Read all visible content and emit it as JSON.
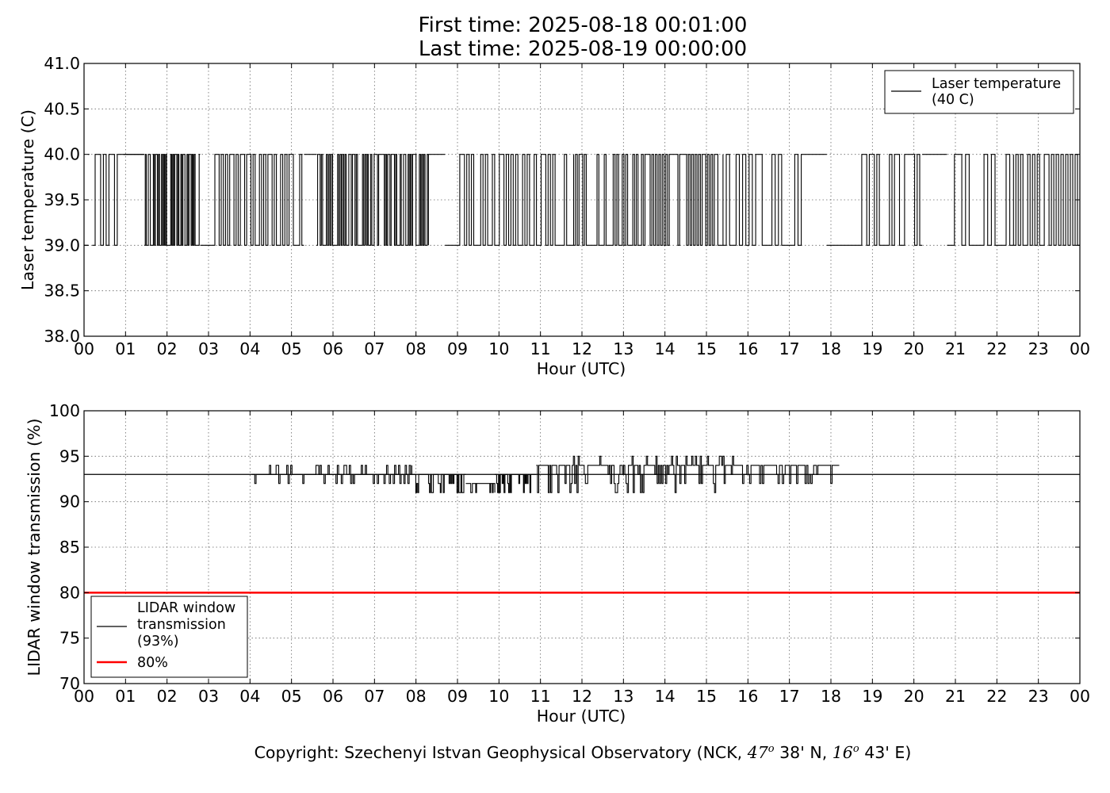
{
  "header": {
    "first_time": "First time: 2025-08-18 00:01:00",
    "last_time": "Last time: 2025-08-19 00:00:00"
  },
  "footer": {
    "copyright_prefix": "Copyright: Szechenyi Istvan Geophysical Observatory (NCK, ",
    "lat_deg": "47",
    "lat_min": " 38' N, ",
    "lon_deg": "16",
    "lon_min": " 43' E)",
    "degree_symbol": "o"
  },
  "chart_data": [
    {
      "type": "line",
      "xlabel": "Hour (UTC)",
      "ylabel": "Laser temperature (C)",
      "xlim": [
        0,
        24
      ],
      "ylim": [
        38.0,
        41.0
      ],
      "xticks": [
        "00",
        "01",
        "02",
        "03",
        "04",
        "05",
        "06",
        "07",
        "08",
        "09",
        "10",
        "11",
        "12",
        "13",
        "14",
        "15",
        "16",
        "17",
        "18",
        "19",
        "20",
        "21",
        "22",
        "23",
        "00"
      ],
      "yticks": [
        "38.0",
        "38.5",
        "39.0",
        "39.5",
        "40.0",
        "40.5",
        "41.0"
      ],
      "grid": true,
      "legend_position": "top-right",
      "series": [
        {
          "name": "Laser temperature\n(40 C)",
          "color": "#000000",
          "baseline": 40.0,
          "segments": [
            {
              "x": [
                0.0,
                0.1
              ],
              "y": [
                39,
                39
              ]
            },
            {
              "x": [
                0.1,
                0.13
              ],
              "y": [
                40,
                40
              ]
            },
            {
              "x": [
                0.2,
                0.8
              ],
              "mode": "dense",
              "density": 9,
              "levels": [
                39,
                40
              ]
            },
            {
              "x": [
                0.8,
                0.95
              ],
              "y": [
                40,
                40
              ]
            },
            {
              "x": [
                0.95,
                1.45
              ],
              "y": [
                40,
                40
              ]
            },
            {
              "x": [
                1.45,
                2.8
              ],
              "mode": "dense",
              "density": 55,
              "levels": [
                39,
                40
              ]
            },
            {
              "x": [
                2.8,
                3.0
              ],
              "y": [
                39,
                39
              ]
            },
            {
              "x": [
                3.0,
                5.3
              ],
              "mode": "dense",
              "density": 45,
              "levels": [
                39,
                40
              ]
            },
            {
              "x": [
                5.3,
                5.6
              ],
              "y": [
                40,
                40
              ]
            },
            {
              "x": [
                5.6,
                6.8
              ],
              "mode": "dense",
              "density": 40,
              "levels": [
                39,
                40
              ]
            },
            {
              "x": [
                6.8,
                8.3
              ],
              "mode": "dense",
              "density": 55,
              "levels": [
                39,
                40
              ]
            },
            {
              "x": [
                8.3,
                8.7
              ],
              "y": [
                40,
                40
              ]
            },
            {
              "x": [
                8.7,
                9.0
              ],
              "y": [
                39,
                39
              ]
            },
            {
              "x": [
                9.0,
                11.8
              ],
              "mode": "dense",
              "density": 50,
              "levels": [
                39,
                40
              ]
            },
            {
              "x": [
                11.8,
                13.1
              ],
              "mode": "dense",
              "density": 30,
              "levels": [
                39,
                40
              ]
            },
            {
              "x": [
                13.1,
                15.4
              ],
              "mode": "dense",
              "density": 55,
              "levels": [
                39,
                40
              ]
            },
            {
              "x": [
                15.4,
                17.6
              ],
              "mode": "dense",
              "density": 28,
              "levels": [
                39,
                40
              ]
            },
            {
              "x": [
                17.6,
                17.9
              ],
              "y": [
                40,
                40
              ]
            },
            {
              "x": [
                17.9,
                18.5
              ],
              "y": [
                39,
                39
              ]
            },
            {
              "x": [
                18.5,
                20.2
              ],
              "mode": "dense",
              "density": 28,
              "levels": [
                39,
                40
              ]
            },
            {
              "x": [
                20.2,
                20.8
              ],
              "y": [
                40,
                40
              ]
            },
            {
              "x": [
                20.8,
                22.4
              ],
              "mode": "dense",
              "density": 18,
              "levels": [
                39,
                40
              ]
            },
            {
              "x": [
                22.4,
                24.0
              ],
              "mode": "dense",
              "density": 28,
              "levels": [
                39,
                40
              ]
            }
          ]
        }
      ]
    },
    {
      "type": "line",
      "xlabel": "Hour (UTC)",
      "ylabel": "LIDAR window transmission (%)",
      "xlim": [
        0,
        24
      ],
      "ylim": [
        70,
        100
      ],
      "xticks": [
        "00",
        "01",
        "02",
        "03",
        "04",
        "05",
        "06",
        "07",
        "08",
        "09",
        "10",
        "11",
        "12",
        "13",
        "14",
        "15",
        "16",
        "17",
        "18",
        "19",
        "20",
        "21",
        "22",
        "23",
        "00"
      ],
      "yticks": [
        "70",
        "75",
        "80",
        "85",
        "90",
        "95",
        "100"
      ],
      "grid": true,
      "legend_position": "bottom-left",
      "series": [
        {
          "name": "LIDAR window\ntransmission\n(93%)",
          "color": "#000000",
          "reference_line": 93,
          "segments": [
            {
              "x": [
                4.05,
                7.9
              ],
              "base": 93,
              "levels": [
                93,
                94,
                92
              ],
              "density": 120
            },
            {
              "x": [
                7.9,
                9.2
              ],
              "base": 93,
              "levels": [
                92,
                93,
                91
              ],
              "density": 55
            },
            {
              "x": [
                9.2,
                9.9
              ],
              "base": 92,
              "levels": [
                91,
                92
              ],
              "density": 35
            },
            {
              "x": [
                9.9,
                10.9
              ],
              "base": 93,
              "levels": [
                92,
                93,
                91
              ],
              "density": 45
            },
            {
              "x": [
                10.9,
                15.8
              ],
              "base": 94,
              "levels": [
                93,
                94,
                95,
                92,
                91
              ],
              "density": 170
            },
            {
              "x": [
                15.8,
                18.2
              ],
              "base": 94,
              "levels": [
                93,
                94,
                92
              ],
              "density": 70
            }
          ]
        },
        {
          "name": "80%",
          "color": "#ff0000",
          "constant": 80
        }
      ]
    }
  ]
}
